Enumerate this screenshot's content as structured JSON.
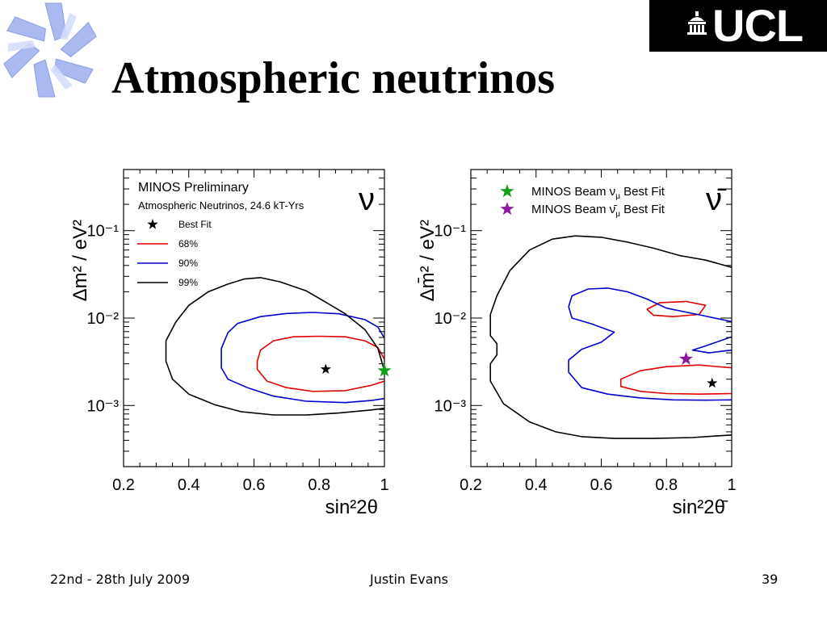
{
  "slide": {
    "title": "Atmospheric neutrinos",
    "logo_text": "UCL",
    "footer": {
      "date": "22nd - 28th July 2009",
      "author": "Justin Evans",
      "page": "39"
    }
  },
  "colors": {
    "contour_68": "#e00000",
    "contour_90": "#0000d0",
    "contour_99": "#000000",
    "beam_nu_star": "#14a01e",
    "beam_nubar_star": "#8b1a9c"
  },
  "chart_data": [
    {
      "type": "scatter",
      "title": "MINOS Preliminary",
      "subtitle": "Atmospheric Neutrinos, 24.6 kT-Yrs",
      "panel_symbol": "ν",
      "xlabel": "sin²2θ",
      "ylabel": "Δm² / eV²",
      "xlim": [
        0.2,
        1.0
      ],
      "ylim": [
        0.0002,
        0.5
      ],
      "yscale": "log",
      "xticks": [
        "0.2",
        "0.4",
        "0.6",
        "0.8",
        "1"
      ],
      "yticks": [
        "10⁻¹",
        "10⁻²",
        "10⁻³"
      ],
      "legend": {
        "placement": "top-left",
        "entries": [
          {
            "label": "Best Fit",
            "marker": "star"
          },
          {
            "label": "68%",
            "color": "#e00000"
          },
          {
            "label": "90%",
            "color": "#0000d0"
          },
          {
            "label": "99%",
            "color": "#000000"
          }
        ]
      },
      "best_fit": {
        "x": 0.82,
        "y": 0.0026
      },
      "beam_nu_best_fit": {
        "x": 1.0,
        "y": 0.0025
      },
      "series": [
        {
          "name": "68%",
          "color": "#e00000",
          "points": [
            [
              1.0,
              0.0034
            ],
            [
              0.98,
              0.0046
            ],
            [
              0.94,
              0.0055
            ],
            [
              0.88,
              0.0061
            ],
            [
              0.8,
              0.0062
            ],
            [
              0.72,
              0.0061
            ],
            [
              0.66,
              0.0055
            ],
            [
              0.62,
              0.0043
            ],
            [
              0.61,
              0.0032
            ],
            [
              0.61,
              0.0026
            ],
            [
              0.64,
              0.0019
            ],
            [
              0.7,
              0.0016
            ],
            [
              0.78,
              0.00145
            ],
            [
              0.88,
              0.00148
            ],
            [
              0.96,
              0.0017
            ],
            [
              1.0,
              0.0019
            ]
          ]
        },
        {
          "name": "90%",
          "color": "#0000d0",
          "points": [
            [
              1.0,
              0.0059
            ],
            [
              0.98,
              0.0079
            ],
            [
              0.94,
              0.0096
            ],
            [
              0.86,
              0.0112
            ],
            [
              0.78,
              0.0116
            ],
            [
              0.7,
              0.0113
            ],
            [
              0.62,
              0.0104
            ],
            [
              0.55,
              0.0087
            ],
            [
              0.52,
              0.0068
            ],
            [
              0.5,
              0.0045
            ],
            [
              0.5,
              0.0027
            ],
            [
              0.52,
              0.002
            ],
            [
              0.58,
              0.0016
            ],
            [
              0.66,
              0.00128
            ],
            [
              0.76,
              0.00112
            ],
            [
              0.88,
              0.00108
            ],
            [
              0.96,
              0.00114
            ],
            [
              1.0,
              0.0012
            ]
          ]
        },
        {
          "name": "99%",
          "color": "#000000",
          "points": [
            [
              1.0,
              0.0025
            ],
            [
              0.98,
              0.0045
            ],
            [
              0.94,
              0.0074
            ],
            [
              0.88,
              0.0112
            ],
            [
              0.82,
              0.0152
            ],
            [
              0.76,
              0.0205
            ],
            [
              0.68,
              0.026
            ],
            [
              0.62,
              0.029
            ],
            [
              0.57,
              0.028
            ],
            [
              0.52,
              0.0245
            ],
            [
              0.46,
              0.02
            ],
            [
              0.4,
              0.014
            ],
            [
              0.36,
              0.009
            ],
            [
              0.33,
              0.0055
            ],
            [
              0.33,
              0.0032
            ],
            [
              0.35,
              0.002
            ],
            [
              0.4,
              0.00135
            ],
            [
              0.48,
              0.00102
            ],
            [
              0.56,
              0.00085
            ],
            [
              0.66,
              0.00078
            ],
            [
              0.76,
              0.00078
            ],
            [
              0.86,
              0.00082
            ],
            [
              0.96,
              0.00089
            ],
            [
              1.0,
              0.00093
            ]
          ]
        }
      ]
    },
    {
      "type": "scatter",
      "panel_symbol": "ν̄",
      "xlabel": "sin²2θ̄",
      "ylabel": "Δm̄² / eV²",
      "xlim": [
        0.2,
        1.0
      ],
      "ylim": [
        0.0002,
        0.5
      ],
      "yscale": "log",
      "xticks": [
        "0.2",
        "0.4",
        "0.6",
        "0.8",
        "1"
      ],
      "yticks": [
        "10⁻¹",
        "10⁻²",
        "10⁻³"
      ],
      "legend": {
        "placement": "top-left",
        "entries": [
          {
            "label": "MINOS Beam ν",
            "sub": "μ",
            "tail": " Best Fit",
            "marker": "star",
            "color": "#14a01e"
          },
          {
            "label": "MINOS Beam ν̄",
            "sub": "μ",
            "tail": " Best Fit",
            "marker": "star",
            "color": "#8b1a9c"
          }
        ]
      },
      "best_fit": {
        "x": 0.94,
        "y": 0.0018
      },
      "beam_nubar_best_fit": {
        "x": 0.86,
        "y": 0.0034
      },
      "series": [
        {
          "name": "68%",
          "color": "#e00000",
          "points": [
            [
              1.0,
              0.0027
            ],
            [
              0.9,
              0.0029
            ],
            [
              0.8,
              0.00278
            ],
            [
              0.72,
              0.0025
            ],
            [
              0.66,
              0.002
            ],
            [
              0.66,
              0.00165
            ],
            [
              0.72,
              0.00145
            ],
            [
              0.8,
              0.00137
            ],
            [
              0.9,
              0.00135
            ],
            [
              1.0,
              0.00137
            ]
          ]
        },
        {
          "name": "68%-upper",
          "color": "#e00000",
          "points": [
            [
              0.74,
              0.0126
            ],
            [
              0.78,
              0.015
            ],
            [
              0.86,
              0.0155
            ],
            [
              0.92,
              0.014
            ],
            [
              0.9,
              0.011
            ],
            [
              0.82,
              0.0104
            ],
            [
              0.76,
              0.0108
            ],
            [
              0.74,
              0.0126
            ]
          ]
        },
        {
          "name": "90%",
          "color": "#0000d0",
          "points": [
            [
              1.0,
              0.0091
            ],
            [
              0.9,
              0.0109
            ],
            [
              0.8,
              0.013
            ],
            [
              0.74,
              0.0165
            ],
            [
              0.68,
              0.02
            ],
            [
              0.62,
              0.022
            ],
            [
              0.56,
              0.0215
            ],
            [
              0.51,
              0.018
            ],
            [
              0.5,
              0.0135
            ],
            [
              0.51,
              0.01
            ],
            [
              0.57,
              0.0086
            ],
            [
              0.64,
              0.0069
            ],
            [
              0.6,
              0.0053
            ],
            [
              0.54,
              0.0044
            ],
            [
              0.5,
              0.0033
            ],
            [
              0.5,
              0.0024
            ],
            [
              0.54,
              0.0016
            ],
            [
              0.62,
              0.00135
            ],
            [
              0.72,
              0.00122
            ],
            [
              0.82,
              0.00116
            ],
            [
              0.92,
              0.00115
            ],
            [
              1.0,
              0.00116
            ]
          ]
        },
        {
          "name": "90%-inner",
          "color": "#0000d0",
          "points": [
            [
              1.0,
              0.0061
            ],
            [
              0.92,
              0.0048
            ],
            [
              0.88,
              0.0043
            ],
            [
              0.93,
              0.004
            ],
            [
              1.0,
              0.0043
            ]
          ]
        },
        {
          "name": "99%",
          "color": "#000000",
          "points": [
            [
              1.0,
              0.038
            ],
            [
              0.92,
              0.046
            ],
            [
              0.84,
              0.052
            ],
            [
              0.76,
              0.063
            ],
            [
              0.68,
              0.074
            ],
            [
              0.6,
              0.084
            ],
            [
              0.52,
              0.087
            ],
            [
              0.45,
              0.08
            ],
            [
              0.38,
              0.06
            ],
            [
              0.32,
              0.035
            ],
            [
              0.28,
              0.018
            ],
            [
              0.26,
              0.011
            ],
            [
              0.26,
              0.0063
            ],
            [
              0.28,
              0.0051
            ],
            [
              0.28,
              0.0038
            ],
            [
              0.26,
              0.003
            ],
            [
              0.26,
              0.0019
            ],
            [
              0.3,
              0.00105
            ],
            [
              0.38,
              0.00065
            ],
            [
              0.46,
              0.0005
            ],
            [
              0.54,
              0.00044
            ],
            [
              0.64,
              0.00042
            ],
            [
              0.76,
              0.00042
            ],
            [
              0.88,
              0.00043
            ],
            [
              1.0,
              0.00046
            ]
          ]
        }
      ]
    }
  ]
}
